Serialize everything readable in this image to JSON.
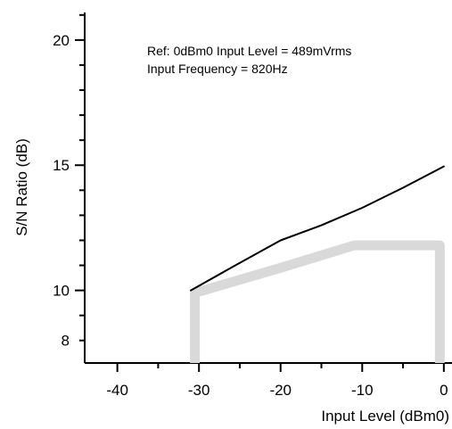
{
  "chart_data": {
    "type": "line",
    "title": "",
    "xlabel": "Input Level (dBm0)",
    "ylabel": "S/N Ratio (dB)",
    "xlim": [
      -44,
      1
    ],
    "ylim": [
      7.1,
      21.1
    ],
    "x_ticks": [
      -40,
      -30,
      -20,
      -10,
      0
    ],
    "y_ticks": [
      8,
      10,
      15,
      20
    ],
    "x_tick_labels": [
      "-40",
      "-30",
      "-20",
      "-10",
      "0"
    ],
    "y_tick_labels": [
      "8",
      "10",
      "15",
      "20"
    ],
    "annotations": [
      "Ref: 0dBm0 Input Level = 489mVrms",
      "Input Frequency = 820Hz"
    ],
    "grid": false,
    "series": [
      {
        "style": "thin-black-line",
        "color": "#000000",
        "x": [
          -31,
          -25,
          -20,
          -15,
          -10,
          -5,
          0
        ],
        "y": [
          10.0,
          11.1,
          12.0,
          12.6,
          13.3,
          14.1,
          14.95
        ]
      },
      {
        "style": "thick-gray-limit",
        "color": "#d9d9d9",
        "x": [
          -30.5,
          -30.5,
          -20,
          -11,
          -0.5,
          -0.5
        ],
        "y": [
          7.1,
          9.9,
          10.9,
          11.8,
          11.8,
          7.1
        ]
      }
    ]
  }
}
